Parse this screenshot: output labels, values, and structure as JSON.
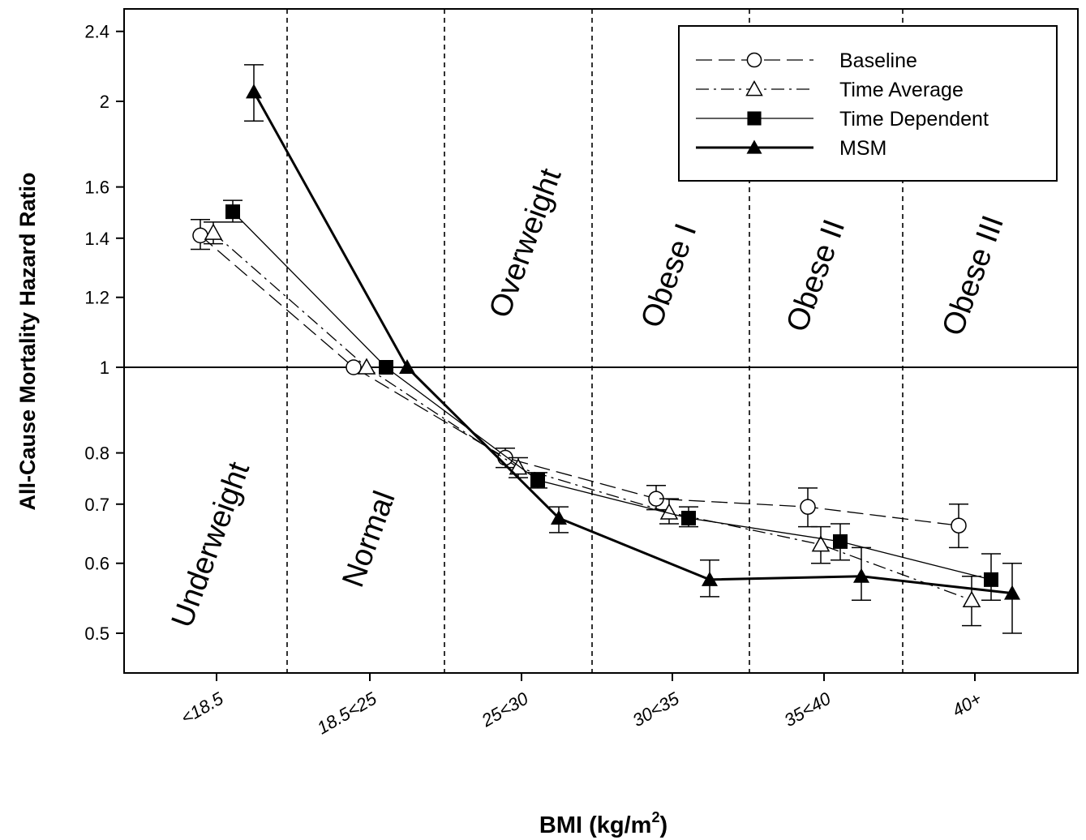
{
  "chart_data": {
    "type": "line",
    "xlabel": "BMI (kg/m",
    "xlabel_sup": "2",
    "xlabel_suffix": ")",
    "ylabel": "All-Cause Mortality Hazard Ratio",
    "y_scale": "log",
    "ylim": [
      0.44,
      2.5
    ],
    "y_ticks": [
      0.5,
      0.6,
      0.7,
      0.8,
      1,
      1.2,
      1.4,
      1.6,
      2,
      2.4
    ],
    "y_tick_labels": [
      "0.5",
      "0.6",
      "0.7",
      "0.8",
      "1",
      "1.2",
      "1.4",
      "1.6",
      "2",
      "2.4"
    ],
    "categories": [
      "<18.5",
      "18.5<25",
      "25<30",
      "30<35",
      "35<40",
      "40+"
    ],
    "reference_line": 1,
    "regions": [
      "Underweight",
      "Normal",
      "Overweight",
      "Obese I",
      "Obese II",
      "Obese III"
    ],
    "legend_position": "top-right",
    "series": [
      {
        "name": "Baseline",
        "line": "dashed",
        "marker": "open-circle",
        "values": [
          1.41,
          1.0,
          0.79,
          0.71,
          0.695,
          0.662
        ],
        "err_low": [
          1.36,
          null,
          0.77,
          0.69,
          0.66,
          0.625
        ],
        "err_high": [
          1.47,
          null,
          0.81,
          0.735,
          0.73,
          0.7
        ]
      },
      {
        "name": "Time Average",
        "line": "dash-dot",
        "marker": "open-triangle",
        "values": [
          1.42,
          1.0,
          0.77,
          0.685,
          0.63,
          0.545
        ],
        "err_low": [
          1.38,
          null,
          0.75,
          0.665,
          0.6,
          0.51
        ],
        "err_high": [
          1.46,
          null,
          0.79,
          0.71,
          0.66,
          0.58
        ]
      },
      {
        "name": "Time Dependent",
        "line": "solid",
        "marker": "filled-square",
        "values": [
          1.5,
          1.0,
          0.745,
          0.675,
          0.635,
          0.575
        ],
        "err_low": [
          1.46,
          null,
          0.73,
          0.66,
          0.605,
          0.545
        ],
        "err_high": [
          1.545,
          null,
          0.76,
          0.695,
          0.665,
          0.615
        ]
      },
      {
        "name": "MSM",
        "line": "solid-thick",
        "marker": "filled-triangle",
        "values": [
          2.05,
          1.0,
          0.675,
          0.575,
          0.58,
          0.555
        ],
        "err_low": [
          1.9,
          null,
          0.65,
          0.55,
          0.545,
          0.5
        ],
        "err_high": [
          2.2,
          null,
          0.695,
          0.605,
          0.625,
          0.6
        ]
      }
    ]
  }
}
